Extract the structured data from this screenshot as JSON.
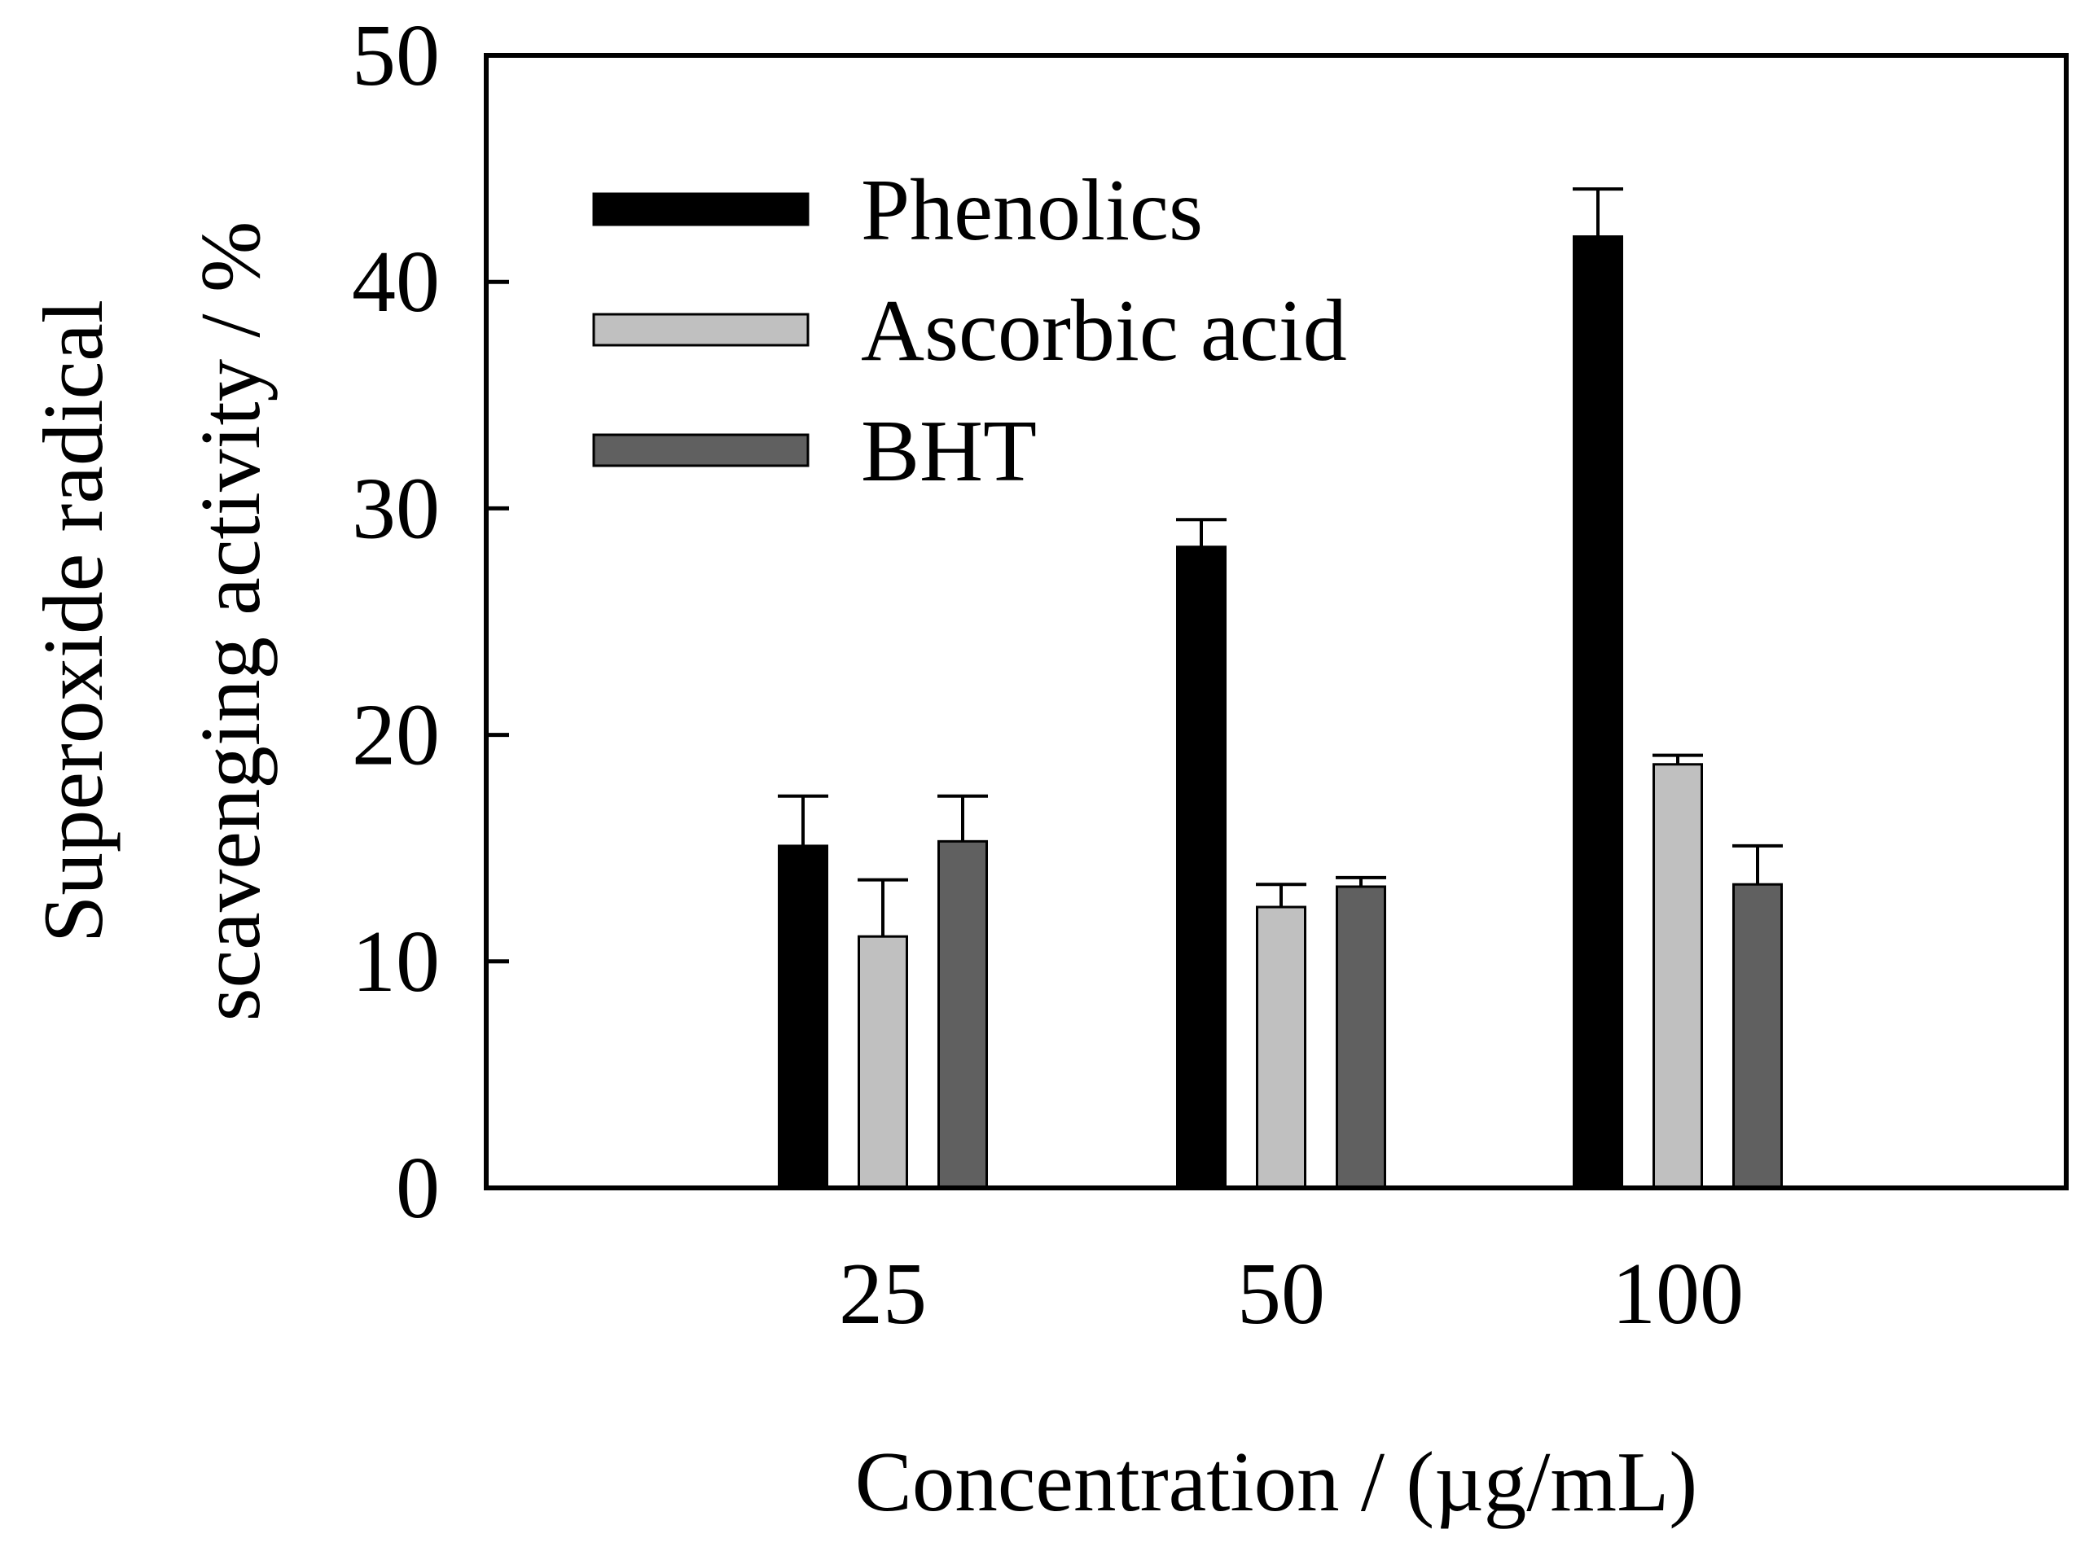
{
  "chart_data": {
    "type": "bar",
    "title": "",
    "xlabel": "Concentration / (µg/mL)",
    "ylabel_lines": [
      "Superoxide radical",
      "scavenging activity / %"
    ],
    "categories": [
      "25",
      "50",
      "100"
    ],
    "ylim": [
      0,
      50
    ],
    "yticks": [
      0,
      10,
      20,
      30,
      40,
      50
    ],
    "ytick_labels": [
      "0",
      "10",
      "20",
      "30",
      "40",
      "50"
    ],
    "grid": false,
    "legend_position": "top-left",
    "series": [
      {
        "name": "Phenolics",
        "color": "#000000",
        "values": [
          15.1,
          28.3,
          42.0
        ],
        "errors": [
          2.2,
          1.2,
          2.1
        ]
      },
      {
        "name": "Ascorbic acid",
        "color": "#c0c0c0",
        "values": [
          11.1,
          12.4,
          18.7
        ],
        "errors": [
          2.5,
          1.0,
          0.4
        ]
      },
      {
        "name": "BHT",
        "color": "#606060",
        "values": [
          15.3,
          13.3,
          13.4
        ],
        "errors": [
          2.0,
          0.4,
          1.7
        ]
      }
    ]
  }
}
